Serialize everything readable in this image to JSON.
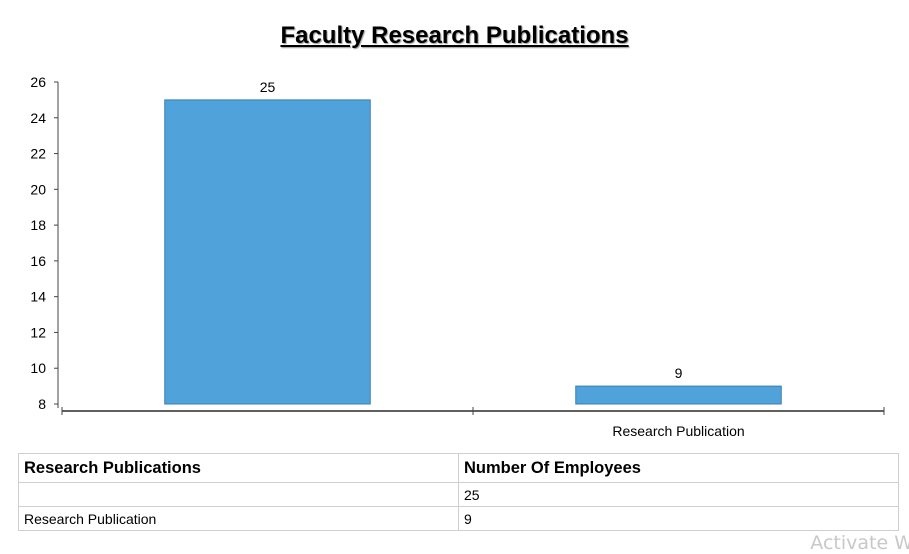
{
  "chart_data": {
    "type": "bar",
    "title": "Faculty Research Publications",
    "categories": [
      "",
      "Research Publication"
    ],
    "values": [
      25,
      9
    ],
    "data_labels": [
      "25",
      "9"
    ],
    "ylim": [
      8,
      26
    ],
    "yticks": [
      8,
      10,
      12,
      14,
      16,
      18,
      20,
      22,
      24,
      26
    ],
    "xlabel": "",
    "ylabel": "",
    "bar_color": "#4fa3da",
    "grid": false
  },
  "table": {
    "headers": [
      "Research Publications",
      "Number Of Employees"
    ],
    "rows": [
      [
        "",
        "25"
      ],
      [
        "Research Publication",
        "9"
      ]
    ]
  },
  "watermark": "Activate W"
}
